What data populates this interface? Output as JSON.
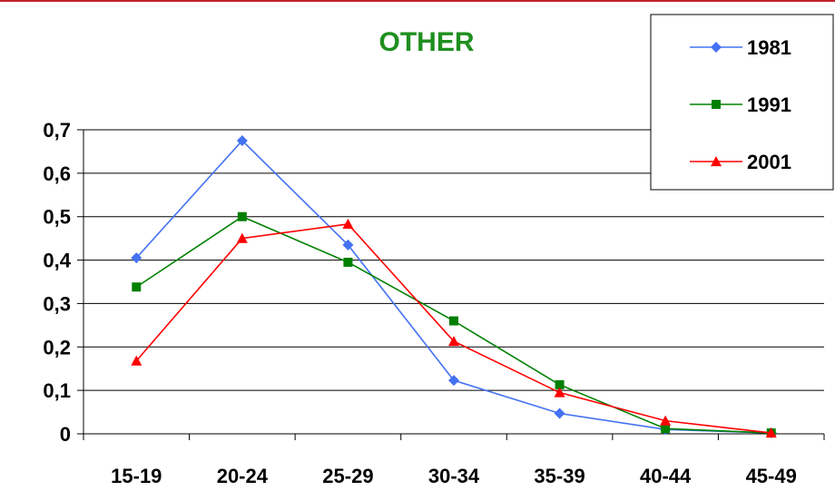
{
  "chart_data": {
    "type": "line",
    "title": "OTHER",
    "xlabel": "",
    "ylabel": "",
    "categories": [
      "15-19",
      "20-24",
      "25-29",
      "30-34",
      "35-39",
      "40-44",
      "45-49"
    ],
    "ylim": [
      0,
      0.7
    ],
    "yticks": [
      {
        "value": 0,
        "label": "0"
      },
      {
        "value": 0.1,
        "label": "0,1"
      },
      {
        "value": 0.2,
        "label": "0,2"
      },
      {
        "value": 0.3,
        "label": "0,3"
      },
      {
        "value": 0.4,
        "label": "0,4"
      },
      {
        "value": 0.5,
        "label": "0,5"
      },
      {
        "value": 0.6,
        "label": "0,6"
      },
      {
        "value": 0.7,
        "label": "0,7"
      }
    ],
    "grid": "horizontal",
    "legend_position": "top-right",
    "series": [
      {
        "name": "1981",
        "color": "#4472f2",
        "marker": "diamond",
        "values": [
          0.405,
          0.675,
          0.435,
          0.123,
          0.047,
          0.01,
          0.002
        ]
      },
      {
        "name": "1991",
        "color": "#008000",
        "marker": "square",
        "values": [
          0.338,
          0.5,
          0.395,
          0.26,
          0.113,
          0.012,
          0.002
        ]
      },
      {
        "name": "2001",
        "color": "#ff0000",
        "marker": "triangle",
        "values": [
          0.168,
          0.45,
          0.483,
          0.213,
          0.095,
          0.03,
          0.002
        ]
      }
    ],
    "title_color": "#1f8f1f",
    "top_rule_color": "#c0202a"
  }
}
